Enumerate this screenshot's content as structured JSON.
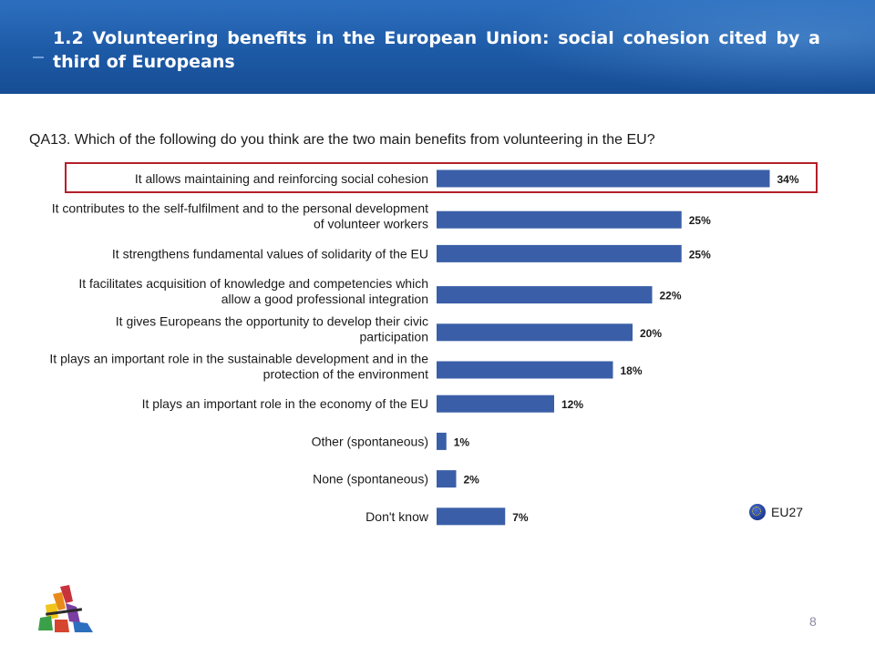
{
  "header": {
    "title": "1.2 Volunteering benefits in the European Union: social cohesion cited by a third of Europeans"
  },
  "question": "QA13. Which of the following do you think are the two main benefits from volunteering in the EU?",
  "chart_data": {
    "type": "bar",
    "orientation": "horizontal",
    "categories": [
      [
        "It allows maintaining and reinforcing social cohesion"
      ],
      [
        "It contributes to the self-fulfilment and to the personal development",
        "of volunteer workers"
      ],
      [
        "It strengthens fundamental values of solidarity of the EU"
      ],
      [
        "It facilitates acquisition of knowledge and competencies which",
        "allow a good professional integration"
      ],
      [
        "It gives Europeans the opportunity to develop their civic",
        "participation"
      ],
      [
        "It plays an important role in the sustainable development and in the",
        "protection of the environment"
      ],
      [
        "It plays an important role in the economy of the EU"
      ],
      [
        "Other (spontaneous)"
      ],
      [
        "None (spontaneous)"
      ],
      [
        "Don't know"
      ]
    ],
    "series": [
      {
        "name": "EU27",
        "values": [
          34,
          25,
          25,
          22,
          20,
          18,
          12,
          1,
          2,
          7
        ],
        "labels": [
          "34%",
          "25%",
          "25%",
          "22%",
          "20%",
          "18%",
          "12%",
          "1%",
          "2%",
          "7%"
        ]
      }
    ],
    "highlighted_index": 0,
    "xlim": [
      0,
      100
    ],
    "grid": false,
    "legend_position": "bottom-right",
    "colors": {
      "bar": "#3a5fa8",
      "highlight": "#b3202a"
    }
  },
  "legend": {
    "label": "EU27",
    "icon": "eu-flag-icon"
  },
  "page_number": "8"
}
